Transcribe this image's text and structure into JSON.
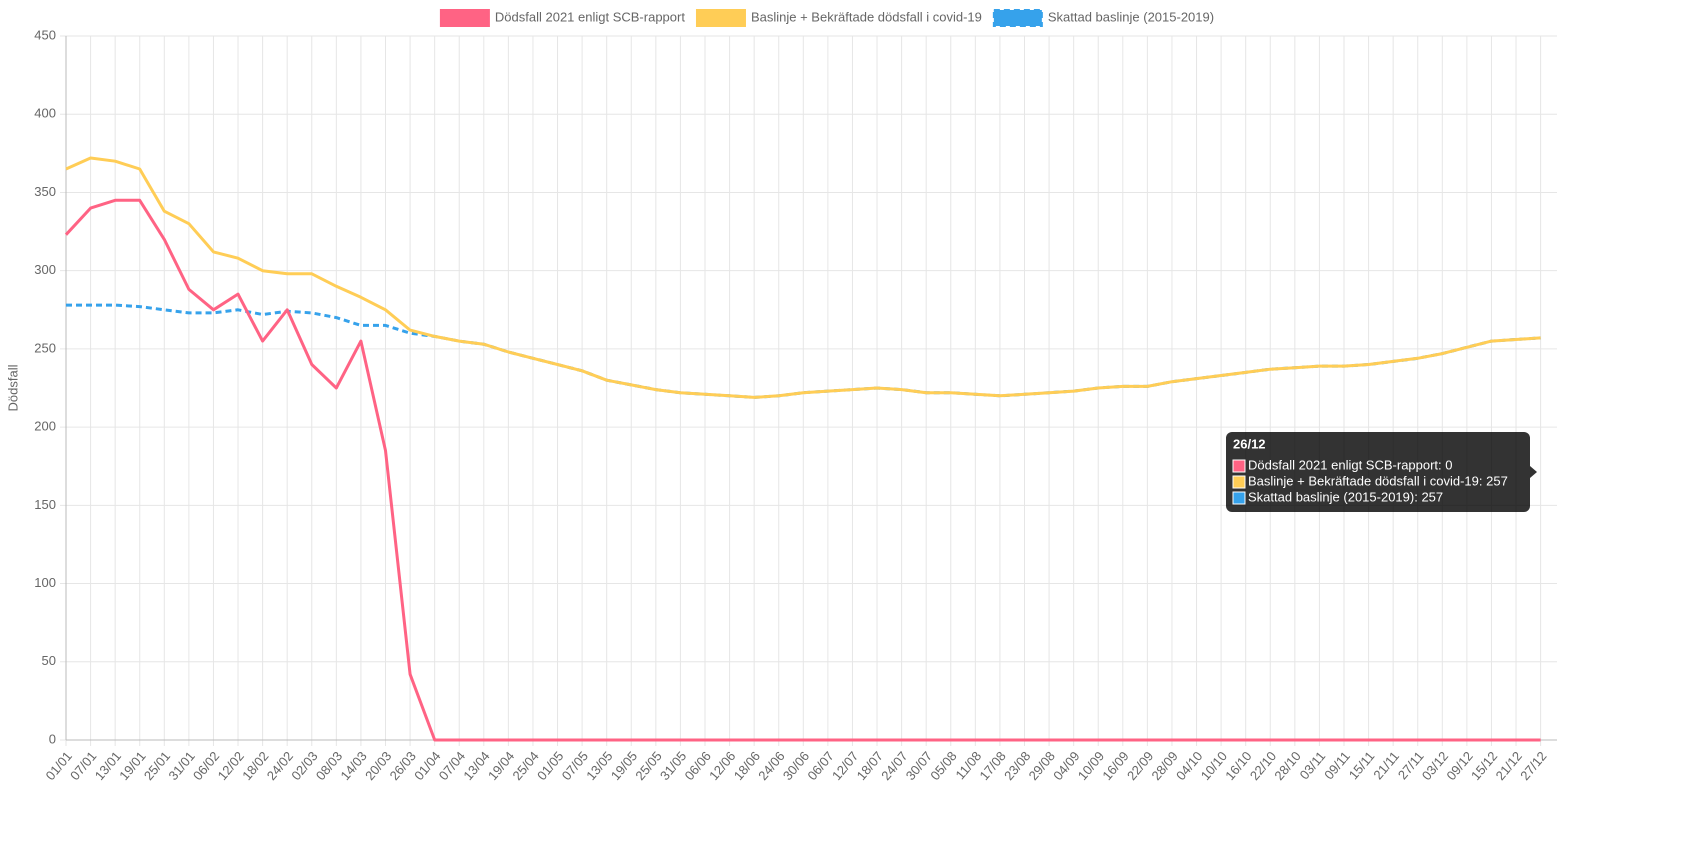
{
  "chart_data": {
    "type": "line",
    "y_label": "Dödsfall",
    "grid": true,
    "legend": "top",
    "categories": [
      "01/01",
      "07/01",
      "13/01",
      "19/01",
      "25/01",
      "31/01",
      "06/02",
      "12/02",
      "18/02",
      "24/02",
      "02/03",
      "08/03",
      "14/03",
      "20/03",
      "26/03",
      "01/04",
      "07/04",
      "13/04",
      "19/04",
      "25/04",
      "01/05",
      "07/05",
      "13/05",
      "19/05",
      "25/05",
      "31/05",
      "06/06",
      "12/06",
      "18/06",
      "24/06",
      "30/06",
      "06/07",
      "12/07",
      "18/07",
      "24/07",
      "30/07",
      "05/08",
      "11/08",
      "17/08",
      "23/08",
      "29/08",
      "04/09",
      "10/09",
      "16/09",
      "22/09",
      "28/09",
      "04/10",
      "10/10",
      "16/10",
      "22/10",
      "28/10",
      "03/11",
      "09/11",
      "15/11",
      "21/11",
      "27/11",
      "03/12",
      "09/12",
      "15/12",
      "21/12",
      "27/12"
    ],
    "ylim": [
      0,
      450
    ],
    "yticks": [
      0,
      50,
      100,
      150,
      200,
      250,
      300,
      350,
      400,
      450
    ],
    "series": [
      {
        "name": "Dödsfall 2021 enligt SCB-rapport",
        "color": "#ff6384",
        "values": [
          323,
          340,
          345,
          345,
          320,
          288,
          275,
          285,
          255,
          275,
          240,
          225,
          255,
          185,
          42,
          0,
          0,
          0,
          0,
          0,
          0,
          0,
          0,
          0,
          0,
          0,
          0,
          0,
          0,
          0,
          0,
          0,
          0,
          0,
          0,
          0,
          0,
          0,
          0,
          0,
          0,
          0,
          0,
          0,
          0,
          0,
          0,
          0,
          0,
          0,
          0,
          0,
          0,
          0,
          0,
          0,
          0,
          0,
          0,
          0,
          0
        ]
      },
      {
        "name": "Baslinje + Bekräftade dödsfall i covid-19",
        "color": "#ffcd56",
        "values": [
          365,
          372,
          370,
          365,
          338,
          330,
          312,
          308,
          300,
          298,
          298,
          290,
          283,
          275,
          262,
          258,
          255,
          253,
          248,
          244,
          240,
          236,
          230,
          227,
          224,
          222,
          221,
          220,
          219,
          220,
          222,
          223,
          224,
          225,
          224,
          222,
          222,
          221,
          220,
          221,
          222,
          223,
          225,
          226,
          226,
          229,
          231,
          233,
          235,
          237,
          238,
          239,
          239,
          240,
          242,
          244,
          247,
          251,
          255,
          256,
          257
        ]
      },
      {
        "name": "Skattad baslinje (2015-2019)",
        "color": "#36a2eb",
        "dashed": true,
        "values": [
          278,
          278,
          278,
          277,
          275,
          273,
          273,
          275,
          272,
          274,
          273,
          270,
          265,
          265,
          260,
          258,
          255,
          253,
          248,
          244,
          240,
          236,
          230,
          227,
          224,
          222,
          221,
          220,
          219,
          220,
          222,
          223,
          224,
          225,
          224,
          222,
          222,
          221,
          220,
          221,
          222,
          223,
          225,
          226,
          226,
          229,
          231,
          233,
          235,
          237,
          238,
          239,
          239,
          240,
          242,
          244,
          247,
          251,
          255,
          256,
          257
        ]
      }
    ],
    "tooltip": {
      "title": "26/12",
      "lines": [
        "Dödsfall 2021 enligt SCB-rapport: 0",
        "Baslinje + Bekräftade dödsfall i covid-19: 257",
        "Skattad baslinje (2015-2019): 257"
      ]
    }
  }
}
